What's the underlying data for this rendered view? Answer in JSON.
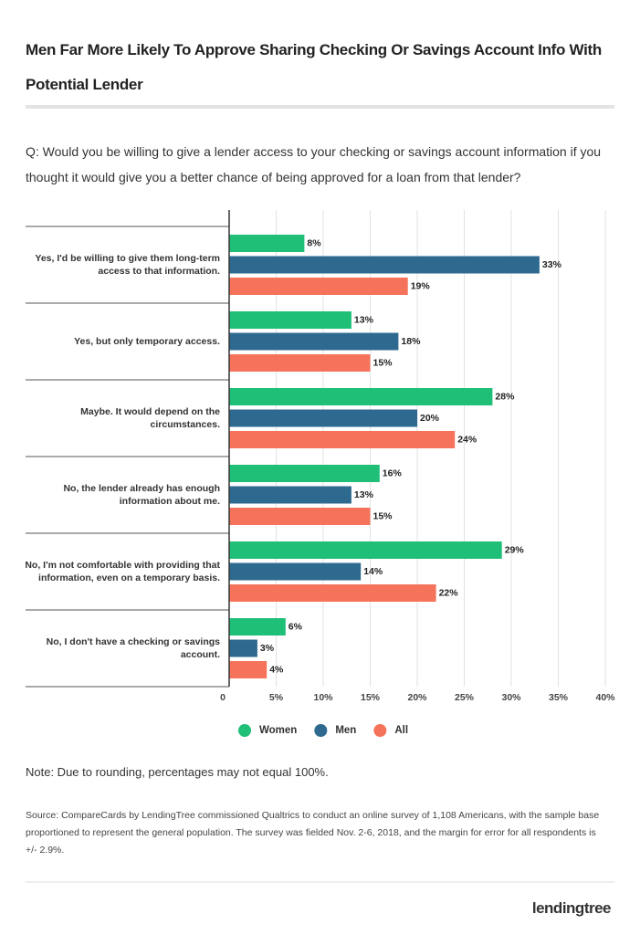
{
  "chart_data": {
    "type": "bar",
    "orientation": "horizontal",
    "title": "Men Far More Likely To Approve Sharing Checking Or Savings Account Info With Potential Lender",
    "subtitle": "Q: Would you be willing to give a lender access to your checking or savings account information if you thought it would give you a better chance of being approved for a loan from that lender?",
    "categories": [
      "Yes, I'd be willing to give them long-term access to that information.",
      "Yes, but only temporary access.",
      "Maybe. It would depend on the circumstances.",
      "No, the lender already has enough information about me.",
      "No, I'm not comfortable with providing that information, even on a temporary basis.",
      "No, I don't have a checking or savings account."
    ],
    "series": [
      {
        "name": "Women",
        "color": "#1fbf78",
        "values": [
          8,
          13,
          28,
          16,
          29,
          6
        ],
        "value_labels": [
          "8%",
          "13%",
          "28%",
          "16%",
          "29%",
          "6%"
        ]
      },
      {
        "name": "Men",
        "color": "#2e6a8f",
        "values": [
          33,
          18,
          20,
          13,
          14,
          3
        ],
        "value_labels": [
          "33%",
          "18%",
          "20%",
          "13%",
          "14%",
          "3%"
        ]
      },
      {
        "name": "All",
        "color": "#f4735a",
        "values": [
          19,
          15,
          24,
          15,
          22,
          4
        ],
        "value_labels": [
          "19%",
          "15%",
          "24%",
          "15%",
          "22%",
          "4%"
        ]
      }
    ],
    "xlim": [
      0,
      40
    ],
    "xticks": [
      0,
      {
        "value": 5,
        "label": "5%"
      },
      {
        "value": 10,
        "label": "10%"
      },
      {
        "value": 15,
        "label": "15%"
      },
      {
        "value": 20,
        "label": "20%"
      },
      {
        "value": 25,
        "label": "25%"
      },
      {
        "value": 30,
        "label": "30%"
      },
      {
        "value": 35,
        "label": "35%"
      },
      {
        "value": 40,
        "label": "40%"
      }
    ],
    "grid": true,
    "legend": "bottom",
    "note": "Note: Due to rounding, percentages may not equal 100%.",
    "source": "Source: CompareCards by LendingTree commissioned Qualtrics to conduct an online survey of 1,108 Americans, with the sample base proportioned to represent the general population. The survey was fielded Nov. 2-6, 2018, and the margin for error for all respondents is +/- 2.9%.",
    "logo": "lendingtree"
  }
}
